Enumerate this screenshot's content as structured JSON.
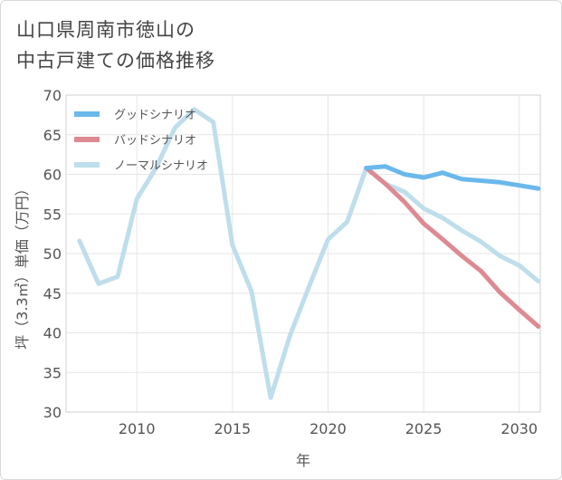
{
  "title_line1": "山口県周南市徳山の",
  "title_line2": "中古戸建ての価格推移",
  "chart_data": {
    "type": "line",
    "xlabel": "年",
    "ylabel": "坪（3.3㎡）単価（万円）",
    "xlim": [
      2006.3,
      2031.1
    ],
    "ylim": [
      30,
      70
    ],
    "xticks": [
      2010,
      2015,
      2020,
      2025,
      2030
    ],
    "yticks": [
      30,
      35,
      40,
      45,
      50,
      55,
      60,
      65,
      70
    ],
    "grid": true,
    "legend_position": "top-left",
    "series": [
      {
        "name": "グッドシナリオ",
        "color": "#6ab8ec",
        "x": [
          2022,
          2023,
          2024,
          2025,
          2026,
          2027,
          2028,
          2029,
          2030,
          2031
        ],
        "y": [
          60.8,
          61.0,
          60.0,
          59.6,
          60.2,
          59.4,
          59.2,
          59.0,
          58.6,
          58.2
        ]
      },
      {
        "name": "バッドシナリオ",
        "color": "#dd8a93",
        "x": [
          2022,
          2023,
          2024,
          2025,
          2026,
          2027,
          2028,
          2029,
          2030,
          2031
        ],
        "y": [
          60.8,
          58.8,
          56.5,
          53.8,
          51.8,
          49.7,
          47.8,
          45.1,
          42.9,
          40.8
        ]
      },
      {
        "name": "ノーマルシナリオ",
        "color": "#bfdeec",
        "x": [
          2007,
          2008,
          2009,
          2010,
          2011,
          2012,
          2013,
          2014,
          2015,
          2016,
          2017,
          2018,
          2019,
          2020,
          2021,
          2022,
          2023,
          2024,
          2025,
          2026,
          2027,
          2028,
          2029,
          2030,
          2031
        ],
        "y": [
          51.6,
          46.2,
          47.1,
          56.9,
          60.8,
          65.9,
          68.2,
          66.6,
          51.1,
          45.2,
          31.8,
          39.6,
          45.8,
          51.8,
          54.0,
          60.8,
          58.8,
          57.8,
          55.7,
          54.5,
          52.9,
          51.5,
          49.7,
          48.5,
          46.5
        ]
      }
    ]
  }
}
